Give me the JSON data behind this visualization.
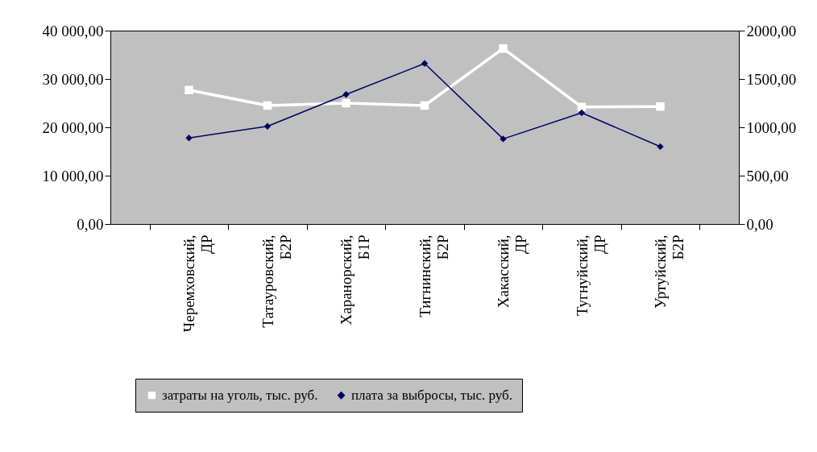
{
  "chart_data": {
    "type": "line",
    "categories": [
      "Черемховский, ДР",
      "Татауровский, Б2Р",
      "Харанорский, Б1Р",
      "Тигнинский, Б2Р",
      "Хакасский, ДР",
      "Тугнуйский, ДР",
      "Уртуйский, Б2Р"
    ],
    "series": [
      {
        "name": "затраты на уголь, тыс. руб.",
        "color": "#ffffff",
        "marker": "square",
        "values": [
          27700,
          24500,
          25000,
          24500,
          36300,
          24200,
          24300
        ]
      },
      {
        "name": "плата за выбросы, тыс. руб.",
        "color": "#000066",
        "marker": "diamond",
        "axis": "y2",
        "values": [
          890,
          1010,
          1340,
          1660,
          880,
          1150,
          800
        ]
      }
    ],
    "ylim": [
      0,
      40000
    ],
    "yticks": [
      {
        "value": 0,
        "label": "0,00"
      },
      {
        "value": 10000,
        "label": "10 000,00"
      },
      {
        "value": 20000,
        "label": "20 000,00"
      },
      {
        "value": 30000,
        "label": "30 000,00"
      },
      {
        "value": 40000,
        "label": "40 000,00"
      }
    ],
    "y2lim": [
      0,
      2000
    ],
    "y2ticks": [
      {
        "value": 0,
        "label": "0,00"
      },
      {
        "value": 500,
        "label": "500,00"
      },
      {
        "value": 1000,
        "label": "1000,00"
      },
      {
        "value": 1500,
        "label": "1500,00"
      },
      {
        "value": 2000,
        "label": "2000,00"
      }
    ],
    "grid": false,
    "legend": "bottom"
  }
}
